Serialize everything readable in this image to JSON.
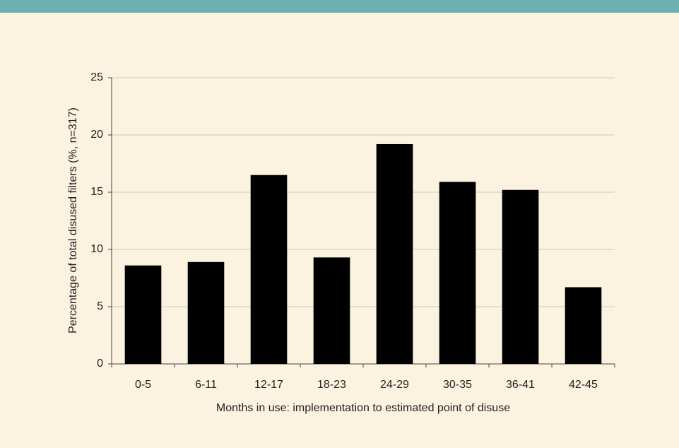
{
  "chart_data": {
    "type": "bar",
    "xlabel": "Months in use: implementation to estimated point of disuse",
    "ylabel": "Percentage of total disused filters (%, n=317)",
    "categories": [
      "0-5",
      "6-11",
      "12-17",
      "18-23",
      "24-29",
      "30-35",
      "36-41",
      "42-45"
    ],
    "values": [
      8.6,
      8.9,
      16.5,
      9.3,
      19.2,
      15.9,
      15.2,
      6.7
    ],
    "color": "#000000",
    "ylim": [
      0,
      25
    ],
    "yticks": [
      0,
      5,
      10,
      15,
      20,
      25
    ],
    "grid": true
  }
}
